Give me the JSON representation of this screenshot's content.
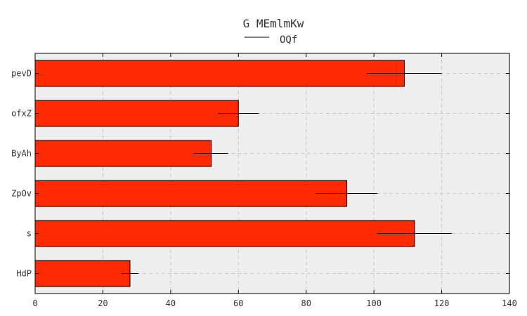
{
  "chart_data": {
    "type": "bar",
    "orientation": "horizontal",
    "title": "G MEmlmKw",
    "categories": [
      "pevD",
      "ofxZ",
      "ByAh",
      "ZpOv",
      "s",
      "HdP"
    ],
    "series": [
      {
        "name": "OQf",
        "values": [
          109,
          60,
          52,
          92,
          112,
          28
        ],
        "errors": [
          11,
          6,
          5,
          9,
          11,
          2.5
        ]
      }
    ],
    "xlim": [
      0,
      140
    ],
    "xticks": [
      0,
      20,
      40,
      60,
      80,
      100,
      120,
      140
    ],
    "grid": true,
    "legend_position": "top-center",
    "colors": {
      "bar": "#ff2a00",
      "bar_edge": "#000000",
      "plot_bg": "#eeeeee",
      "grid": "#c8c8c8",
      "error": "#000000"
    }
  }
}
